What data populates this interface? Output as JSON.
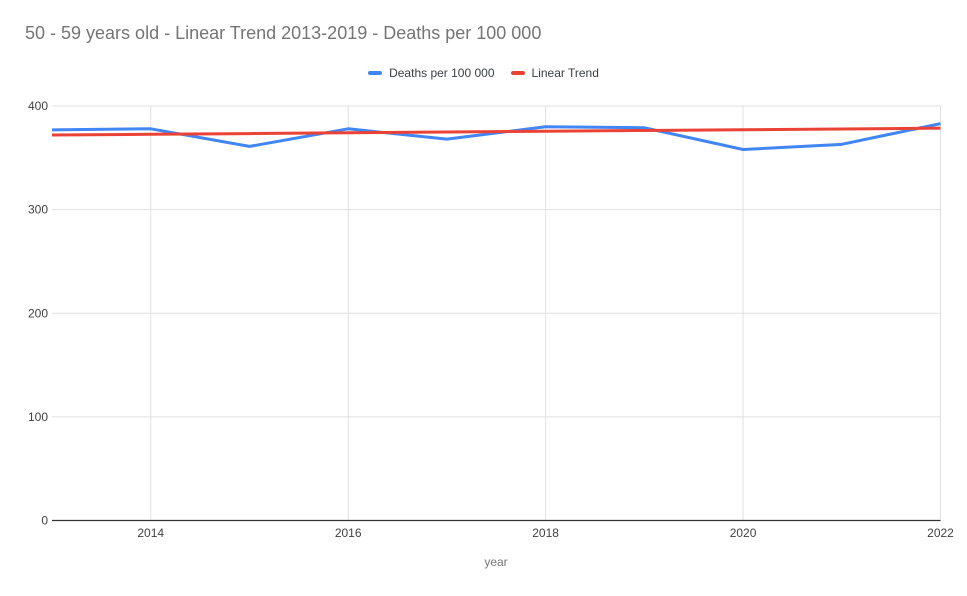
{
  "chart": {
    "title": "50 - 59 years old - Linear Trend 2013-2019 - Deaths per 100 000",
    "x_axis_title": "year"
  },
  "style": {
    "series_blue": "#4285F4",
    "series_red": "#EA4335",
    "gridline_color": "#e0e0e0",
    "axis_line_color": "#333333",
    "tick_label_color": "#424242",
    "title_color": "#757575"
  },
  "chart_data": {
    "type": "line",
    "title": "50 - 59 years old - Linear Trend 2013-2019 - Deaths per 100 000",
    "xlabel": "year",
    "ylabel": "",
    "x": [
      2013,
      2014,
      2015,
      2016,
      2017,
      2018,
      2019,
      2020,
      2021,
      2022
    ],
    "series": [
      {
        "name": "Deaths per 100 000",
        "color": "#4285F4",
        "values": [
          377,
          378,
          361,
          378,
          368,
          380,
          379,
          358,
          363,
          383
        ]
      },
      {
        "name": "Linear Trend",
        "color": "#EA4335",
        "values": [
          372.0,
          372.7,
          373.4,
          374.2,
          374.9,
          375.6,
          376.4,
          377.1,
          377.8,
          378.6
        ]
      }
    ],
    "xlim": [
      2013,
      2022
    ],
    "ylim": [
      0,
      400
    ],
    "xticks": [
      2014,
      2016,
      2018,
      2020,
      2022
    ],
    "yticks": [
      0,
      100,
      200,
      300,
      400
    ],
    "grid": true,
    "legend_position": "top"
  }
}
